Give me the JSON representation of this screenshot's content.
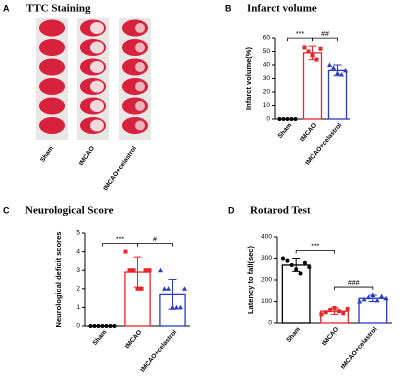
{
  "panel_a": {
    "label": "A",
    "title": "TTC Staining",
    "columns": [
      "Sham",
      "tMCAO",
      "tMCAO+celastrol"
    ]
  },
  "chart_data": [
    {
      "type": "bar",
      "panel_label": "B",
      "title": "Infarct volume",
      "y_label": "Infarct volume(%)",
      "categories": [
        "Sham",
        "tMCAO",
        "tMCAO+celastrol"
      ],
      "colors": [
        "#000000",
        "#e8262a",
        "#2a3bc4"
      ],
      "markers": [
        "circle",
        "square",
        "triangle"
      ],
      "values": [
        0,
        49,
        36
      ],
      "errors": [
        0,
        5,
        4
      ],
      "points": [
        [
          0,
          0,
          0,
          0,
          0
        ],
        [
          53,
          50,
          47,
          44,
          52
        ],
        [
          40,
          38,
          34,
          33,
          36
        ]
      ],
      "ylim": [
        0,
        60
      ],
      "yticks": [
        0,
        10,
        20,
        30,
        40,
        50,
        60
      ],
      "annotations": [
        "***",
        "##"
      ]
    },
    {
      "type": "bar",
      "panel_label": "C",
      "title": "Neurological Score",
      "y_label": "Neurological deficit scores",
      "categories": [
        "Sham",
        "tMCAO",
        "tMCAO+celastrol"
      ],
      "colors": [
        "#000000",
        "#e8262a",
        "#2a3bc4"
      ],
      "markers": [
        "circle",
        "square",
        "triangle"
      ],
      "values": [
        0,
        2.9,
        1.7
      ],
      "errors": [
        0,
        0.8,
        0.8
      ],
      "points": [
        [
          0,
          0,
          0,
          0,
          0,
          0,
          0
        ],
        [
          4,
          3,
          3,
          2,
          2,
          3,
          3
        ],
        [
          3,
          2,
          2,
          1,
          1,
          1,
          2
        ]
      ],
      "ylim": [
        0,
        5
      ],
      "yticks": [
        0,
        1,
        2,
        3,
        4,
        5
      ],
      "annotations": [
        "***",
        "#"
      ]
    },
    {
      "type": "bar",
      "panel_label": "D",
      "title": "Rotarod Test",
      "y_label": "Latency to fall(sec)",
      "categories": [
        "Sham",
        "tMCAO",
        "tMCAO+celastrol"
      ],
      "colors": [
        "#000000",
        "#e8262a",
        "#2a3bc4"
      ],
      "markers": [
        "circle",
        "square",
        "triangle"
      ],
      "values": [
        270,
        55,
        115
      ],
      "errors": [
        30,
        15,
        15
      ],
      "points": [
        [
          300,
          290,
          270,
          250,
          230,
          280,
          260
        ],
        [
          40,
          50,
          60,
          70,
          55,
          45,
          65
        ],
        [
          100,
          110,
          120,
          130,
          105,
          125,
          115
        ]
      ],
      "ylim": [
        0,
        400
      ],
      "yticks": [
        0,
        100,
        200,
        300,
        400
      ],
      "annotations": [
        "***",
        "###"
      ]
    }
  ]
}
